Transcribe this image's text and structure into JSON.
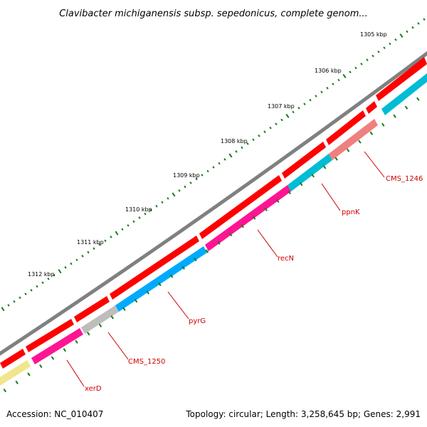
{
  "title": "Clavibacter michiganensis subsp. sepedonicus, complete genom...",
  "accession": "Accession: NC_010407",
  "summary": "Topology: circular; Length: 3,258,645 bp; Genes: 2,991",
  "ticks": [
    "1305 kbp",
    "1306 kbp",
    "1307 kbp",
    "1308 kbp",
    "1309 kbp",
    "1310 kbp",
    "1311 kbp",
    "1312 kbp"
  ],
  "gene_labels": [
    "CMS_1246",
    "ppnK",
    "recN",
    "pyrG",
    "CMS_1250",
    "xerD"
  ],
  "colors": {
    "backbone": "#808080",
    "gene": "#ff0000",
    "magenta": "#ff1493",
    "cyan": "#00bcd4",
    "sky": "#00aaff",
    "salmon": "#f08080",
    "gray": "#bdbdbd",
    "yellow": "#f0e68c",
    "tick": "#1a7a1a",
    "label": "#cc0000"
  }
}
